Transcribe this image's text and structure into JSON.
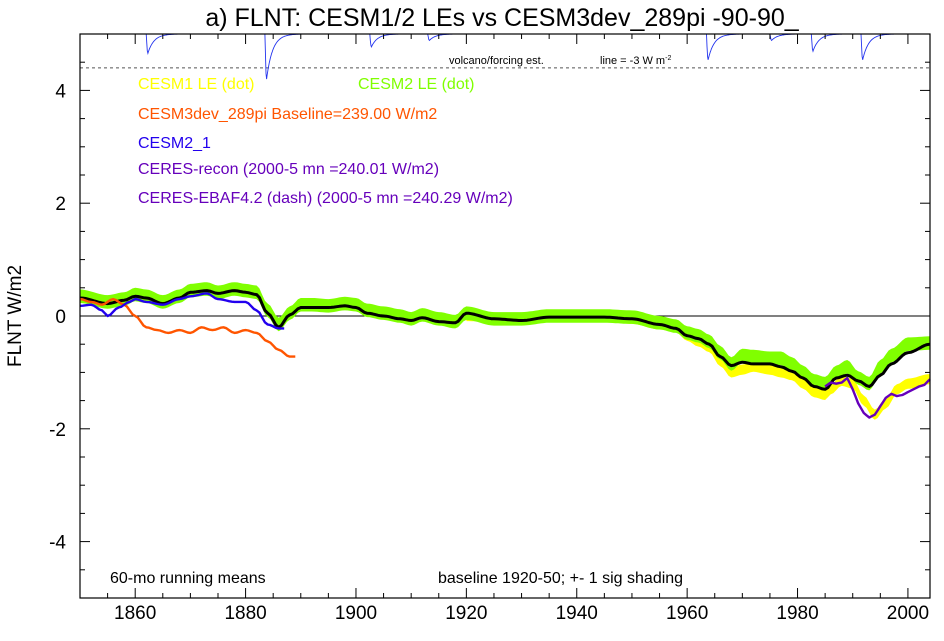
{
  "chart_data": {
    "type": "line",
    "title": "a) FLNT: CESM1/2 LEs vs CESM3dev_289pi -90-90_",
    "ylabel": "FLNT W/m2",
    "xlabel": "",
    "xlim": [
      1850,
      2004
    ],
    "ylim": [
      -5,
      5
    ],
    "x_tick_labels": [
      "1860",
      "1880",
      "1900",
      "1920",
      "1940",
      "1960",
      "1980",
      "2000"
    ],
    "y_tick_labels": [
      "-4",
      "-2",
      "0",
      "2",
      "4"
    ],
    "reference_lines": [
      0
    ],
    "legend": [
      {
        "label": "CESM1 LE (dot)",
        "color": "#ffff00"
      },
      {
        "label": "CESM2 LE (dot)",
        "color": "#80ff00"
      },
      {
        "label": "CESM3dev_289pi Baseline=239.00 W/m2",
        "color": "#ff5500"
      },
      {
        "label": "CESM2_1",
        "color": "#2200ee"
      },
      {
        "label": "CERES-recon (2000-5 mn =240.01 W/m2)",
        "color": "#6600bb"
      },
      {
        "label": "CERES-EBAF4.2 (dash) (2000-5 mn =240.29 W/m2)",
        "color": "#6600bb"
      }
    ],
    "annotations": {
      "volcano_label": "volcano/forcing est.",
      "volcano_line_label": "line = -3 W m",
      "volcano_line_sup": "-2",
      "bottom_left": "60-mo running means",
      "bottom_right": "baseline 1920-50; +- 1 sig shading"
    },
    "colors": {
      "cesm1_band": "#ffff00",
      "cesm2_band": "#80ff00",
      "ensemble_mean": "#000000",
      "cesm3dev": "#ff5500",
      "cesm2_1": "#2200ee",
      "ceres": "#6600bb",
      "volcano": "#2233ee"
    },
    "volcano": {
      "baseline": 5.0,
      "dashed_level": 4.4,
      "dips": [
        {
          "year": 1862,
          "value": 4.55
        },
        {
          "year": 1883.5,
          "value": 3.95
        },
        {
          "year": 1902.5,
          "value": 4.7
        },
        {
          "year": 1913,
          "value": 4.85
        },
        {
          "year": 1963.5,
          "value": 4.4
        },
        {
          "year": 1975,
          "value": 4.85
        },
        {
          "year": 1982.5,
          "value": 4.6
        },
        {
          "year": 1991.5,
          "value": 4.4
        }
      ]
    },
    "series": [
      {
        "name": "CESM1 LE (dot)",
        "kind": "band",
        "sigma": 0.09,
        "x": [
          1920,
          1930,
          1935,
          1940,
          1945,
          1950,
          1955,
          1958,
          1960,
          1962,
          1964,
          1966,
          1968,
          1970,
          1972,
          1975,
          1977,
          1979,
          1981,
          1983,
          1985,
          1986,
          1988,
          1990,
          1992,
          1994,
          1996,
          1998,
          2000,
          2004
        ],
        "values": [
          0.0,
          -0.05,
          -0.02,
          -0.02,
          0.0,
          -0.05,
          -0.15,
          -0.2,
          -0.35,
          -0.45,
          -0.55,
          -0.8,
          -1.0,
          -0.95,
          -0.9,
          -0.95,
          -1.0,
          -1.05,
          -1.2,
          -1.35,
          -1.4,
          -1.3,
          -1.15,
          -1.2,
          -1.5,
          -1.75,
          -1.55,
          -1.3,
          -1.2,
          -1.12
        ]
      },
      {
        "name": "CESM2 LE (dot)",
        "kind": "band",
        "sigma": 0.12,
        "x": [
          1850,
          1855,
          1858,
          1860,
          1862,
          1865,
          1868,
          1870,
          1873,
          1875,
          1878,
          1880,
          1882,
          1884,
          1886,
          1888,
          1890,
          1892,
          1895,
          1898,
          1900,
          1902,
          1905,
          1908,
          1910,
          1912,
          1915,
          1918,
          1920,
          1925,
          1930,
          1935,
          1940,
          1945,
          1950,
          1955,
          1958,
          1960,
          1962,
          1964,
          1966,
          1968,
          1970,
          1972,
          1975,
          1977,
          1979,
          1981,
          1983,
          1985,
          1987,
          1989,
          1991,
          1993,
          1995,
          1997,
          2000,
          2004
        ],
        "values": [
          0.35,
          0.25,
          0.3,
          0.38,
          0.35,
          0.25,
          0.35,
          0.45,
          0.48,
          0.42,
          0.48,
          0.45,
          0.42,
          0.1,
          -0.15,
          0.05,
          0.2,
          0.2,
          0.18,
          0.22,
          0.2,
          0.1,
          0.05,
          0.0,
          -0.05,
          0.02,
          -0.05,
          -0.1,
          0.05,
          -0.05,
          -0.05,
          0.0,
          0.0,
          0.0,
          -0.02,
          -0.12,
          -0.18,
          -0.3,
          -0.35,
          -0.45,
          -0.65,
          -0.85,
          -0.7,
          -0.72,
          -0.75,
          -0.75,
          -0.85,
          -1.0,
          -1.15,
          -1.2,
          -1.0,
          -0.9,
          -1.1,
          -1.2,
          -0.9,
          -0.7,
          -0.5,
          -0.48
        ]
      },
      {
        "name": "Ensemble mean (black)",
        "kind": "line",
        "x": [
          1850,
          1855,
          1858,
          1860,
          1862,
          1865,
          1868,
          1870,
          1873,
          1875,
          1878,
          1880,
          1882,
          1884,
          1886,
          1888,
          1890,
          1892,
          1895,
          1898,
          1900,
          1902,
          1905,
          1908,
          1910,
          1912,
          1915,
          1918,
          1920,
          1925,
          1930,
          1935,
          1940,
          1945,
          1950,
          1955,
          1958,
          1960,
          1962,
          1964,
          1966,
          1968,
          1970,
          1972,
          1975,
          1977,
          1979,
          1981,
          1983,
          1985,
          1987,
          1989,
          1991,
          1993,
          1995,
          1997,
          2000,
          2004
        ],
        "values": [
          0.32,
          0.22,
          0.28,
          0.35,
          0.32,
          0.22,
          0.32,
          0.42,
          0.45,
          0.4,
          0.45,
          0.42,
          0.38,
          0.05,
          -0.2,
          0.02,
          0.15,
          0.15,
          0.15,
          0.18,
          0.15,
          0.05,
          0.0,
          -0.05,
          -0.08,
          -0.03,
          -0.1,
          -0.12,
          0.05,
          -0.05,
          -0.08,
          -0.02,
          -0.02,
          -0.02,
          -0.05,
          -0.15,
          -0.22,
          -0.35,
          -0.4,
          -0.5,
          -0.72,
          -0.88,
          -0.82,
          -0.85,
          -0.85,
          -0.9,
          -0.98,
          -1.1,
          -1.25,
          -1.3,
          -1.1,
          -1.05,
          -1.15,
          -1.25,
          -1.05,
          -0.85,
          -0.65,
          -0.5
        ]
      },
      {
        "name": "CESM3dev_289pi Baseline=239.00 W/m2",
        "kind": "line",
        "x": [
          1850,
          1852,
          1854,
          1856,
          1858,
          1860,
          1862,
          1864,
          1866,
          1868,
          1870,
          1872,
          1874,
          1876,
          1878,
          1880,
          1882,
          1884,
          1886,
          1888,
          1889
        ],
        "values": [
          0.3,
          0.25,
          0.2,
          0.3,
          0.2,
          0.0,
          -0.2,
          -0.25,
          -0.3,
          -0.25,
          -0.3,
          -0.2,
          -0.25,
          -0.2,
          -0.3,
          -0.25,
          -0.3,
          -0.45,
          -0.6,
          -0.72,
          -0.72
        ]
      },
      {
        "name": "CESM2_1",
        "kind": "line",
        "x": [
          1850,
          1852,
          1854,
          1855,
          1857,
          1859,
          1860,
          1862,
          1865,
          1868,
          1870,
          1873,
          1875,
          1878,
          1880,
          1882,
          1884,
          1886,
          1887
        ],
        "values": [
          0.18,
          0.2,
          0.1,
          0.0,
          0.15,
          0.25,
          0.3,
          0.25,
          0.2,
          0.3,
          0.35,
          0.4,
          0.3,
          0.25,
          0.25,
          0.1,
          -0.15,
          -0.22,
          -0.22
        ]
      },
      {
        "name": "CERES-recon (2000-5 mn =240.01 W/m2)",
        "kind": "line",
        "x": [
          1985,
          1986,
          1987,
          1988,
          1989,
          1990,
          1991,
          1992,
          1993,
          1994,
          1995,
          1996,
          1997,
          1998,
          1999,
          2000,
          2001,
          2002,
          2003,
          2004
        ],
        "values": [
          -1.25,
          -1.18,
          -1.2,
          -1.18,
          -1.1,
          -1.3,
          -1.55,
          -1.72,
          -1.8,
          -1.75,
          -1.6,
          -1.45,
          -1.38,
          -1.42,
          -1.4,
          -1.35,
          -1.3,
          -1.25,
          -1.22,
          -1.12
        ]
      }
    ]
  }
}
